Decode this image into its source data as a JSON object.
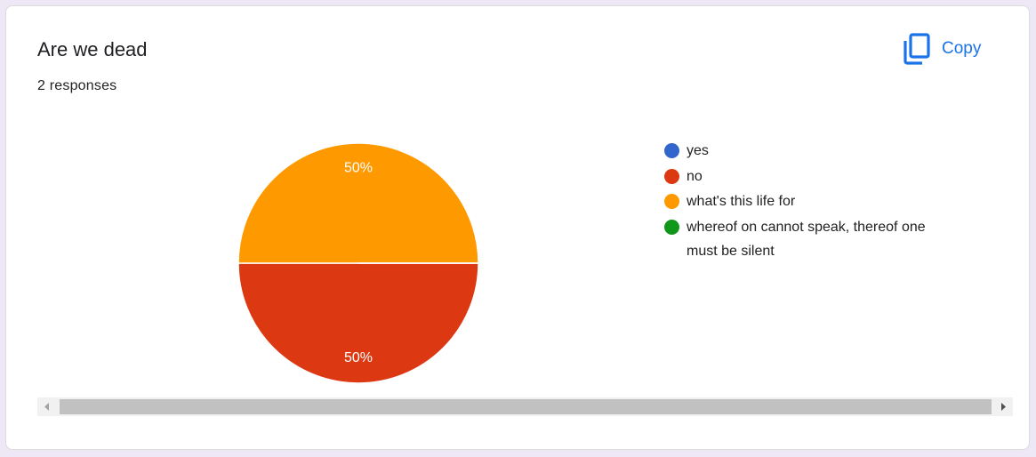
{
  "header": {
    "title": "Are we dead",
    "responses": "2 responses",
    "copy_button": "Copy"
  },
  "chart_data": {
    "type": "pie",
    "categories": [
      "yes",
      "no",
      "what's this life for",
      "whereof on cannot speak, thereof one must be silent"
    ],
    "values": [
      0,
      50,
      50,
      0
    ],
    "value_labels": [
      null,
      "50%",
      "50%",
      null
    ],
    "colors": [
      "#3366cc",
      "#dc3912",
      "#ff9900",
      "#109618"
    ],
    "legend": "right"
  }
}
